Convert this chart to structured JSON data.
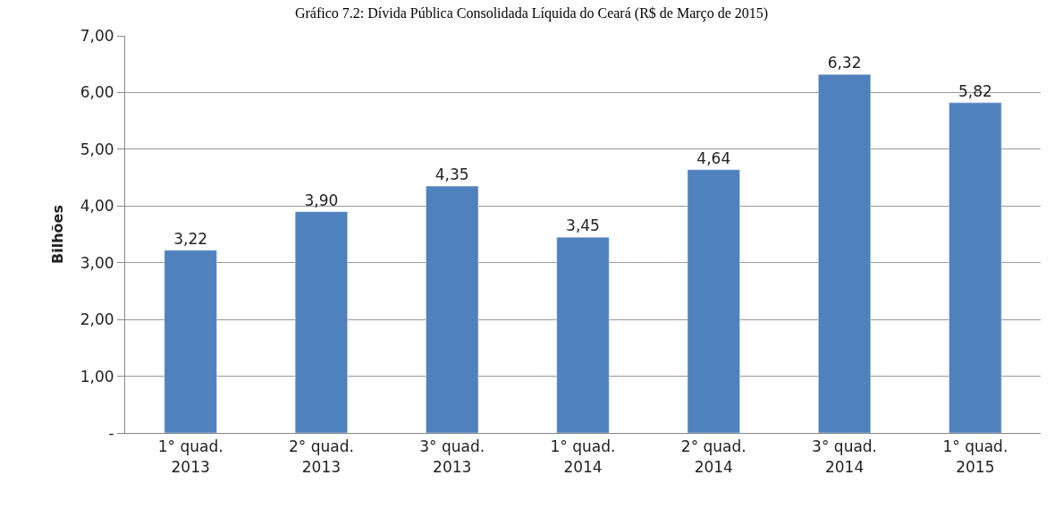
{
  "chart_data": {
    "type": "bar",
    "title": "Gráfico 7.2: Dívida Pública Consolidada Líquida do Ceará (R$ de Março de 2015)",
    "ylabel": "Bilhões",
    "categories": [
      "1° quad.\n2013",
      "2° quad.\n2013",
      "3° quad.\n2013",
      "1° quad.\n2014",
      "2° quad.\n2014",
      "3° quad.\n2014",
      "1° quad.\n2015"
    ],
    "values": [
      3.22,
      3.9,
      4.35,
      3.45,
      4.64,
      6.32,
      5.82
    ],
    "value_labels": [
      "3,22",
      "3,90",
      "4,35",
      "3,45",
      "4,64",
      "6,32",
      "5,82"
    ],
    "color": "#4f81bd",
    "ylim": [
      0,
      7
    ],
    "yticks": [
      {
        "value": 0,
        "label": "-"
      },
      {
        "value": 1,
        "label": "1,00"
      },
      {
        "value": 2,
        "label": "2,00"
      },
      {
        "value": 3,
        "label": "3,00"
      },
      {
        "value": 4,
        "label": "4,00"
      },
      {
        "value": 5,
        "label": "5,00"
      },
      {
        "value": 6,
        "label": "6,00"
      },
      {
        "value": 7,
        "label": "7,00"
      }
    ],
    "grid": "y"
  }
}
